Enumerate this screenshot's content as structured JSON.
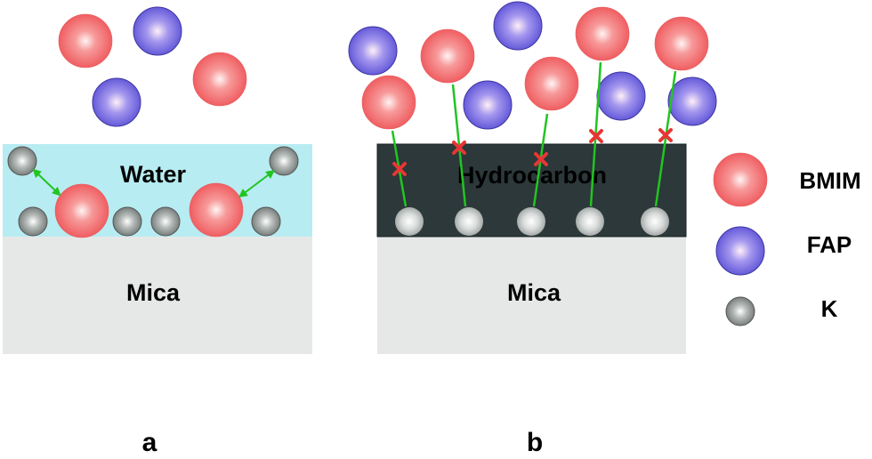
{
  "panel_a": {
    "label": "a",
    "layer_label": "Water",
    "substrate_label": "Mica",
    "layer_color": "#b7ecf2"
  },
  "panel_b": {
    "label": "b",
    "layer_label": "Hydrocarbon",
    "substrate_label": "Mica",
    "layer_color": "#2c3839"
  },
  "substrate_color": "#e6e8e7",
  "legend": [
    {
      "label": "BMIM",
      "color": "#f26466"
    },
    {
      "label": "FAP",
      "color": "#7468e0"
    },
    {
      "label": "K",
      "color": "#8a928f"
    }
  ],
  "arrow_color": "#22c422",
  "blocked_mark_color": "#e83535"
}
